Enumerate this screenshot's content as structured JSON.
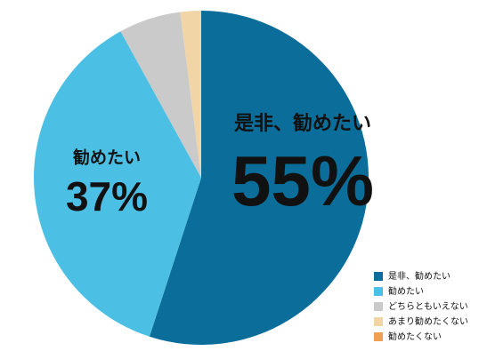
{
  "chart_data": {
    "type": "pie",
    "categories": [
      "是非、勧めたい",
      "勧めたい",
      "どちらともいえない",
      "あまり勧めたくない",
      "勧めたくない"
    ],
    "values": [
      55,
      37,
      6,
      2,
      0
    ],
    "value_labels": [
      "55%",
      "37%",
      null,
      null,
      null
    ],
    "colors": [
      "#0b6d99",
      "#4cc0e4",
      "#cacaca",
      "#f1d5a6",
      "#f0a050"
    ],
    "legend": "lower right"
  }
}
